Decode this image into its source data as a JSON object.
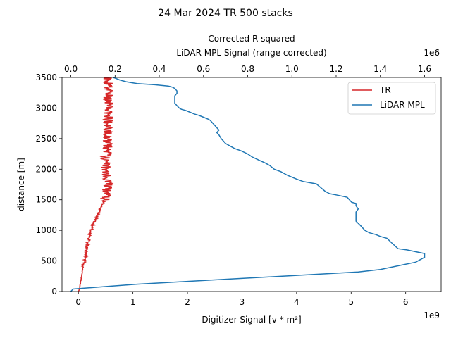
{
  "chart_data": {
    "type": "line",
    "title": "24 Mar 2024 TR 500 stacks",
    "ylabel": "distance [m]",
    "ylim": [
      0,
      3500
    ],
    "yticks": [
      0,
      500,
      1000,
      1500,
      2000,
      2500,
      3000,
      3500
    ],
    "bottom_axis": {
      "label": "Digitizer Signal [v * m²]",
      "label_color": "#d62728",
      "xlim": [
        -0.3,
        6.65
      ],
      "ticks": [
        0,
        1,
        2,
        3,
        4,
        5,
        6
      ],
      "offset_text": "1e9"
    },
    "top_axis": {
      "title": "Corrected R-squared",
      "label": "LiDAR MPL Signal (range corrected)",
      "label_color": "#1f77b4",
      "xlim": [
        -0.04,
        1.675
      ],
      "ticks": [
        0.0,
        0.2,
        0.4,
        0.6,
        0.8,
        1.0,
        1.2,
        1.4,
        1.6
      ],
      "offset_text": "1e6"
    },
    "legend": {
      "position": "top-right",
      "entries": [
        "TR",
        "LiDAR MPL"
      ]
    },
    "series": [
      {
        "name": "TR",
        "color": "#d62728",
        "axis": "bottom",
        "base_points": [
          [
            0.0,
            0
          ],
          [
            0.02,
            50
          ],
          [
            0.05,
            200
          ],
          [
            0.08,
            380
          ],
          [
            0.12,
            500
          ],
          [
            0.15,
            700
          ],
          [
            0.2,
            900
          ],
          [
            0.25,
            1050
          ],
          [
            0.3,
            1150
          ],
          [
            0.38,
            1300
          ],
          [
            0.45,
            1450
          ],
          [
            0.5,
            1550
          ],
          [
            0.52,
            1650
          ],
          [
            0.55,
            1750
          ],
          [
            0.5,
            2000
          ],
          [
            0.5,
            2100
          ],
          [
            0.52,
            2250
          ],
          [
            0.55,
            2500
          ],
          [
            0.55,
            2750
          ],
          [
            0.55,
            3000
          ],
          [
            0.55,
            3250
          ],
          [
            0.55,
            3500
          ]
        ]
      },
      {
        "name": "LiDAR MPL",
        "color": "#1f77b4",
        "axis": "top",
        "points": [
          [
            0.0,
            0
          ],
          [
            0.01,
            40
          ],
          [
            0.15,
            80
          ],
          [
            0.3,
            120
          ],
          [
            0.5,
            160
          ],
          [
            0.7,
            200
          ],
          [
            0.9,
            240
          ],
          [
            1.1,
            280
          ],
          [
            1.3,
            320
          ],
          [
            1.4,
            360
          ],
          [
            1.48,
            420
          ],
          [
            1.56,
            480
          ],
          [
            1.6,
            560
          ],
          [
            1.6,
            620
          ],
          [
            1.56,
            650
          ],
          [
            1.52,
            680
          ],
          [
            1.48,
            700
          ],
          [
            1.45,
            800
          ],
          [
            1.43,
            870
          ],
          [
            1.4,
            900
          ],
          [
            1.38,
            930
          ],
          [
            1.35,
            960
          ],
          [
            1.33,
            1000
          ],
          [
            1.31,
            1080
          ],
          [
            1.29,
            1150
          ],
          [
            1.29,
            1200
          ],
          [
            1.29,
            1250
          ],
          [
            1.29,
            1300
          ],
          [
            1.3,
            1350
          ],
          [
            1.29,
            1400
          ],
          [
            1.29,
            1440
          ],
          [
            1.27,
            1460
          ],
          [
            1.25,
            1540
          ],
          [
            1.2,
            1580
          ],
          [
            1.17,
            1600
          ],
          [
            1.15,
            1640
          ],
          [
            1.13,
            1700
          ],
          [
            1.11,
            1760
          ],
          [
            1.08,
            1780
          ],
          [
            1.05,
            1800
          ],
          [
            1.02,
            1840
          ],
          [
            0.98,
            1900
          ],
          [
            0.95,
            1960
          ],
          [
            0.92,
            2000
          ],
          [
            0.9,
            2060
          ],
          [
            0.88,
            2100
          ],
          [
            0.85,
            2150
          ],
          [
            0.82,
            2200
          ],
          [
            0.8,
            2250
          ],
          [
            0.77,
            2300
          ],
          [
            0.74,
            2340
          ],
          [
            0.72,
            2380
          ],
          [
            0.7,
            2420
          ],
          [
            0.69,
            2460
          ],
          [
            0.68,
            2500
          ],
          [
            0.67,
            2560
          ],
          [
            0.66,
            2600
          ],
          [
            0.67,
            2640
          ],
          [
            0.66,
            2680
          ],
          [
            0.65,
            2720
          ],
          [
            0.64,
            2760
          ],
          [
            0.63,
            2800
          ],
          [
            0.62,
            2820
          ],
          [
            0.6,
            2850
          ],
          [
            0.58,
            2880
          ],
          [
            0.56,
            2900
          ],
          [
            0.54,
            2930
          ],
          [
            0.52,
            2960
          ],
          [
            0.5,
            2980
          ],
          [
            0.49,
            3000
          ],
          [
            0.48,
            3040
          ],
          [
            0.47,
            3080
          ],
          [
            0.47,
            3120
          ],
          [
            0.47,
            3160
          ],
          [
            0.47,
            3200
          ],
          [
            0.48,
            3240
          ],
          [
            0.48,
            3280
          ],
          [
            0.47,
            3320
          ],
          [
            0.46,
            3340
          ],
          [
            0.45,
            3350
          ],
          [
            0.44,
            3360
          ],
          [
            0.38,
            3380
          ],
          [
            0.3,
            3400
          ],
          [
            0.25,
            3430
          ],
          [
            0.22,
            3460
          ],
          [
            0.2,
            3490
          ],
          [
            0.19,
            3500
          ]
        ]
      }
    ]
  }
}
